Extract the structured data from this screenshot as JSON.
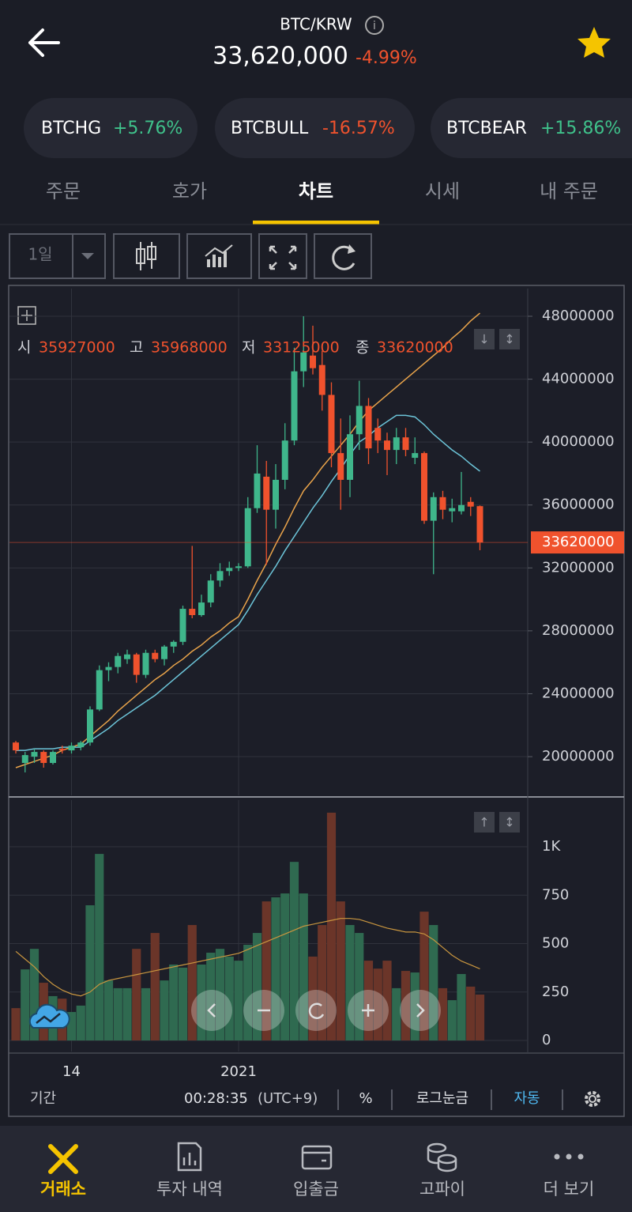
{
  "header": {
    "pair": "BTC/KRW",
    "price": "33,620,000",
    "change": "-4.99%"
  },
  "chips": [
    {
      "name": "BTCHG",
      "change": "+5.76%"
    },
    {
      "name": "BTCBULL",
      "change": "-16.57%"
    },
    {
      "name": "BTCBEAR",
      "change": "+15.86%"
    }
  ],
  "tabs": [
    "주문",
    "호가",
    "차트",
    "시세",
    "내 주문"
  ],
  "toolbar": {
    "period": "1일"
  },
  "chart_data": {
    "type": "candlestick",
    "categories": [
      null,
      null,
      null,
      null,
      null,
      null,
      "14",
      null,
      null,
      null,
      null,
      null,
      null,
      null,
      null,
      null,
      null,
      null,
      null,
      null,
      null,
      null,
      null,
      null,
      "2021",
      null,
      null,
      null,
      null,
      null,
      null,
      null,
      null,
      null,
      null,
      null,
      null,
      null,
      null,
      null,
      null,
      null,
      null,
      null,
      null,
      null,
      null,
      null,
      null,
      null,
      null
    ],
    "open": [
      20900000,
      19600000,
      20000000,
      20300000,
      19600000,
      20500000,
      20400000,
      20600000,
      20900000,
      23000000,
      25500000,
      25700000,
      26200000,
      26500000,
      25200000,
      26600000,
      26200000,
      27000000,
      27300000,
      29400000,
      29000000,
      29800000,
      31200000,
      31800000,
      32000000,
      32100000,
      35800000,
      37800000,
      35700000,
      37600000,
      40100000,
      44500000,
      45500000,
      44900000,
      43000000,
      39300000,
      37600000,
      40500000,
      42300000,
      40900000,
      40100000,
      39500000,
      40300000,
      39000000,
      39300000,
      35000000,
      36500000,
      35600000,
      35600000,
      36200000,
      35927000
    ],
    "high": [
      21000000,
      20300000,
      20500000,
      20400000,
      20400000,
      20700000,
      20900000,
      21000000,
      23200000,
      25800000,
      26000000,
      26600000,
      26800000,
      26600000,
      26800000,
      26800000,
      27100000,
      27400000,
      29600000,
      33400000,
      30300000,
      31600000,
      32300000,
      32400000,
      32300000,
      36500000,
      39800000,
      38800000,
      38600000,
      41200000,
      46000000,
      48000000,
      47400000,
      45800000,
      43800000,
      41500000,
      41700000,
      43900000,
      42800000,
      41500000,
      40600000,
      40900000,
      40900000,
      40300000,
      39400000,
      36800000,
      36900000,
      36400000,
      38100000,
      36500000,
      35968000
    ],
    "low": [
      20200000,
      19000000,
      19600000,
      19300000,
      19500000,
      20200000,
      20200000,
      20400000,
      20700000,
      22900000,
      24800000,
      25300000,
      25900000,
      24700000,
      25000000,
      26000000,
      25800000,
      26600000,
      27100000,
      28800000,
      28900000,
      29500000,
      30800000,
      31500000,
      31800000,
      32000000,
      35500000,
      32200000,
      34500000,
      37000000,
      39800000,
      43500000,
      44300000,
      42000000,
      38400000,
      35700000,
      36500000,
      39500000,
      38600000,
      39300000,
      37900000,
      38600000,
      39100000,
      38600000,
      34800000,
      31600000,
      35100000,
      34900000,
      35400000,
      35300000,
      33125000
    ],
    "close": [
      20400000,
      20100000,
      20300000,
      19600000,
      20300000,
      20400000,
      20700000,
      20900000,
      23000000,
      25500000,
      25700000,
      26400000,
      26500000,
      25200000,
      26600000,
      26200000,
      27000000,
      27300000,
      29400000,
      29000000,
      29800000,
      31200000,
      31800000,
      32000000,
      32100000,
      35800000,
      38000000,
      35700000,
      37600000,
      40100000,
      44500000,
      45700000,
      44700000,
      43000000,
      39300000,
      37600000,
      40500000,
      42300000,
      39600000,
      40100000,
      39500000,
      40300000,
      39500000,
      39300000,
      35000000,
      36500000,
      35700000,
      35800000,
      36000000,
      35900000,
      33620000
    ],
    "colors": {
      "up": "#3fb68b",
      "down": "#f0522d"
    },
    "ylim": [
      17540000,
      49760000
    ],
    "yticks": [
      20000000,
      24000000,
      28000000,
      32000000,
      36000000,
      40000000,
      44000000,
      48000000
    ],
    "grid": true,
    "ohlc_labels": [
      "시",
      "고",
      "저",
      "종"
    ],
    "ma": [
      {
        "color": "#e8a34a",
        "values": [
          19300000,
          19500000,
          19700000,
          19900000,
          20100000,
          20400000,
          20600000,
          20800000,
          21300000,
          21800000,
          22300000,
          22900000,
          23400000,
          23900000,
          24400000,
          24900000,
          25300000,
          25800000,
          26200000,
          26700000,
          27100000,
          27600000,
          28000000,
          28500000,
          28900000,
          30000000,
          31200000,
          32300000,
          33500000,
          34600000,
          35800000,
          36900000,
          37600000,
          38400000,
          39100000,
          39800000,
          40500000,
          41300000,
          42000000,
          42500000,
          43000000,
          43500000,
          44000000,
          44500000,
          45000000,
          45500000,
          46000000,
          46600000,
          47100000,
          47700000,
          48200000
        ]
      },
      {
        "color": "#6cc4d8",
        "values": [
          20400000,
          20400000,
          20500000,
          20500000,
          20500000,
          20600000,
          20600000,
          20600000,
          21000000,
          21400000,
          21800000,
          22300000,
          22700000,
          23100000,
          23500000,
          23900000,
          24400000,
          24900000,
          25400000,
          25900000,
          26400000,
          26900000,
          27400000,
          27900000,
          28400000,
          29300000,
          30300000,
          31200000,
          32100000,
          33100000,
          34000000,
          34900000,
          35800000,
          36600000,
          37500000,
          38300000,
          39200000,
          40000000,
          40400000,
          40900000,
          41300000,
          41700000,
          41700000,
          41600000,
          41100000,
          40500000,
          40000000,
          39500000,
          39100000,
          38600000,
          38150000
        ]
      }
    ],
    "volume": {
      "values": [
        167,
        367,
        473,
        298,
        229,
        216,
        147,
        180,
        698,
        963,
        310,
        270,
        270,
        473,
        270,
        555,
        310,
        392,
        376,
        596,
        392,
        453,
        473,
        433,
        412,
        494,
        555,
        718,
        739,
        759,
        922,
        759,
        433,
        596,
        1176,
        718,
        596,
        555,
        412,
        371,
        412,
        270,
        359,
        351,
        665,
        596,
        270,
        208,
        343,
        278,
        237
      ],
      "colors": {
        "up": "#2f6a50",
        "down": "#6b3529"
      },
      "ylim": [
        -57,
        1241
      ],
      "yticks": [
        0,
        250,
        500,
        750,
        {
          "value": 1000,
          "label": "1K"
        }
      ],
      "ma": {
        "color": "#c9963f",
        "values": [
          460,
          420,
          380,
          330,
          290,
          260,
          240,
          230,
          250,
          290,
          310,
          320,
          330,
          340,
          350,
          360,
          370,
          380,
          390,
          400,
          410,
          420,
          430,
          440,
          450,
          470,
          490,
          510,
          530,
          550,
          570,
          590,
          600,
          610,
          620,
          630,
          630,
          625,
          610,
          595,
          580,
          570,
          560,
          560,
          550,
          520,
          480,
          440,
          410,
          390,
          370
        ]
      }
    }
  },
  "footer": {
    "period": "기간",
    "time": "00:28:35",
    "zone": "(UTC+9)",
    "percent": "%",
    "log": "로그눈금",
    "auto": "자동"
  },
  "nav": [
    "거래소",
    "투자 내역",
    "입출금",
    "고파이",
    "더 보기"
  ]
}
